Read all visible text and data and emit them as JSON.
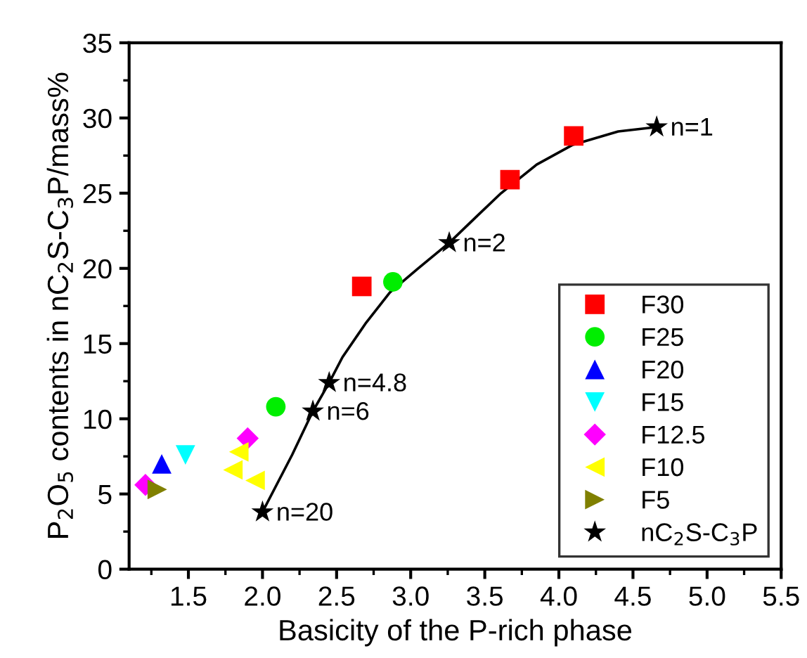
{
  "chart_data": {
    "type": "scatter",
    "xlabel": "Basicity of the P-rich phase",
    "ylabel": "P$_{2}$O$_{5}$ contents in nC$_{2}$S-C$_{3}$P/mass%",
    "xlim": [
      1.1,
      5.5
    ],
    "xticks": [
      1.5,
      {
        "value": 2,
        "label": "2.0"
      },
      2.5,
      {
        "value": 3,
        "label": "3.0"
      },
      3.5,
      {
        "value": 4,
        "label": "4.0"
      },
      4.5,
      {
        "value": 5,
        "label": "5.0"
      },
      5.5
    ],
    "ylim": [
      0,
      35
    ],
    "yticks": [
      0,
      5,
      10,
      15,
      20,
      25,
      30,
      35
    ],
    "grid": false,
    "legend": "bottom right",
    "series": [
      {
        "type": "line",
        "color": "#000000",
        "marker": "none",
        "line_style": "solid",
        "x": [
          2.0,
          2.2,
          2.34,
          2.45,
          2.54,
          2.7,
          2.86,
          3.05,
          3.26,
          3.45,
          3.61,
          3.85,
          4.09,
          4.4,
          4.66
        ],
        "values": [
          3.8,
          7.6,
          10.5,
          12.4,
          14.1,
          16.4,
          18.4,
          20.0,
          21.7,
          23.5,
          25.0,
          26.9,
          28.2,
          29.1,
          29.4
        ]
      },
      {
        "name": "F30",
        "color": "#ff0000",
        "marker": "square",
        "x": [
          2.67,
          3.67,
          4.1
        ],
        "values": [
          18.8,
          25.9,
          28.8
        ]
      },
      {
        "name": "F25",
        "color": "#00ee00",
        "marker": "circle",
        "x": [
          2.88,
          2.09
        ],
        "values": [
          19.1,
          10.8
        ]
      },
      {
        "name": "F20",
        "color": "#0000ff",
        "marker": "triangle",
        "x": [
          1.32
        ],
        "values": [
          7.0
        ]
      },
      {
        "name": "F15",
        "color": "#00ffff",
        "marker": "triangle-down",
        "x": [
          1.48
        ],
        "values": [
          7.6
        ]
      },
      {
        "name": "F12.5",
        "color": "#ff00ff",
        "marker": "diamond",
        "x": [
          1.9,
          1.21
        ],
        "values": [
          8.7,
          5.6
        ]
      },
      {
        "name": "F10",
        "color": "#ffff00",
        "marker": "triangle-left",
        "x": [
          1.84,
          1.8,
          1.95
        ],
        "values": [
          7.8,
          6.6,
          5.9
        ]
      },
      {
        "name": "F5",
        "color": "#808000",
        "marker": "triangle-right",
        "x": [
          1.29
        ],
        "values": [
          5.3
        ]
      },
      {
        "name": "nC$_{2}$S-C$_{3}$P",
        "color": "#000000",
        "marker": "star",
        "x": [
          4.66,
          3.26,
          2.45,
          2.34,
          2.0
        ],
        "values": [
          29.4,
          21.7,
          12.4,
          10.5,
          3.8
        ]
      }
    ],
    "annotations": [
      {
        "text": "n=1",
        "x": 4.66,
        "y": 29.4
      },
      {
        "text": "n=2",
        "x": 3.26,
        "y": 21.7
      },
      {
        "text": "n=4.8",
        "x": 2.45,
        "y": 12.4
      },
      {
        "text": "n=6",
        "x": 2.34,
        "y": 10.5
      },
      {
        "text": "n=20",
        "x": 2.0,
        "y": 3.8
      }
    ]
  }
}
